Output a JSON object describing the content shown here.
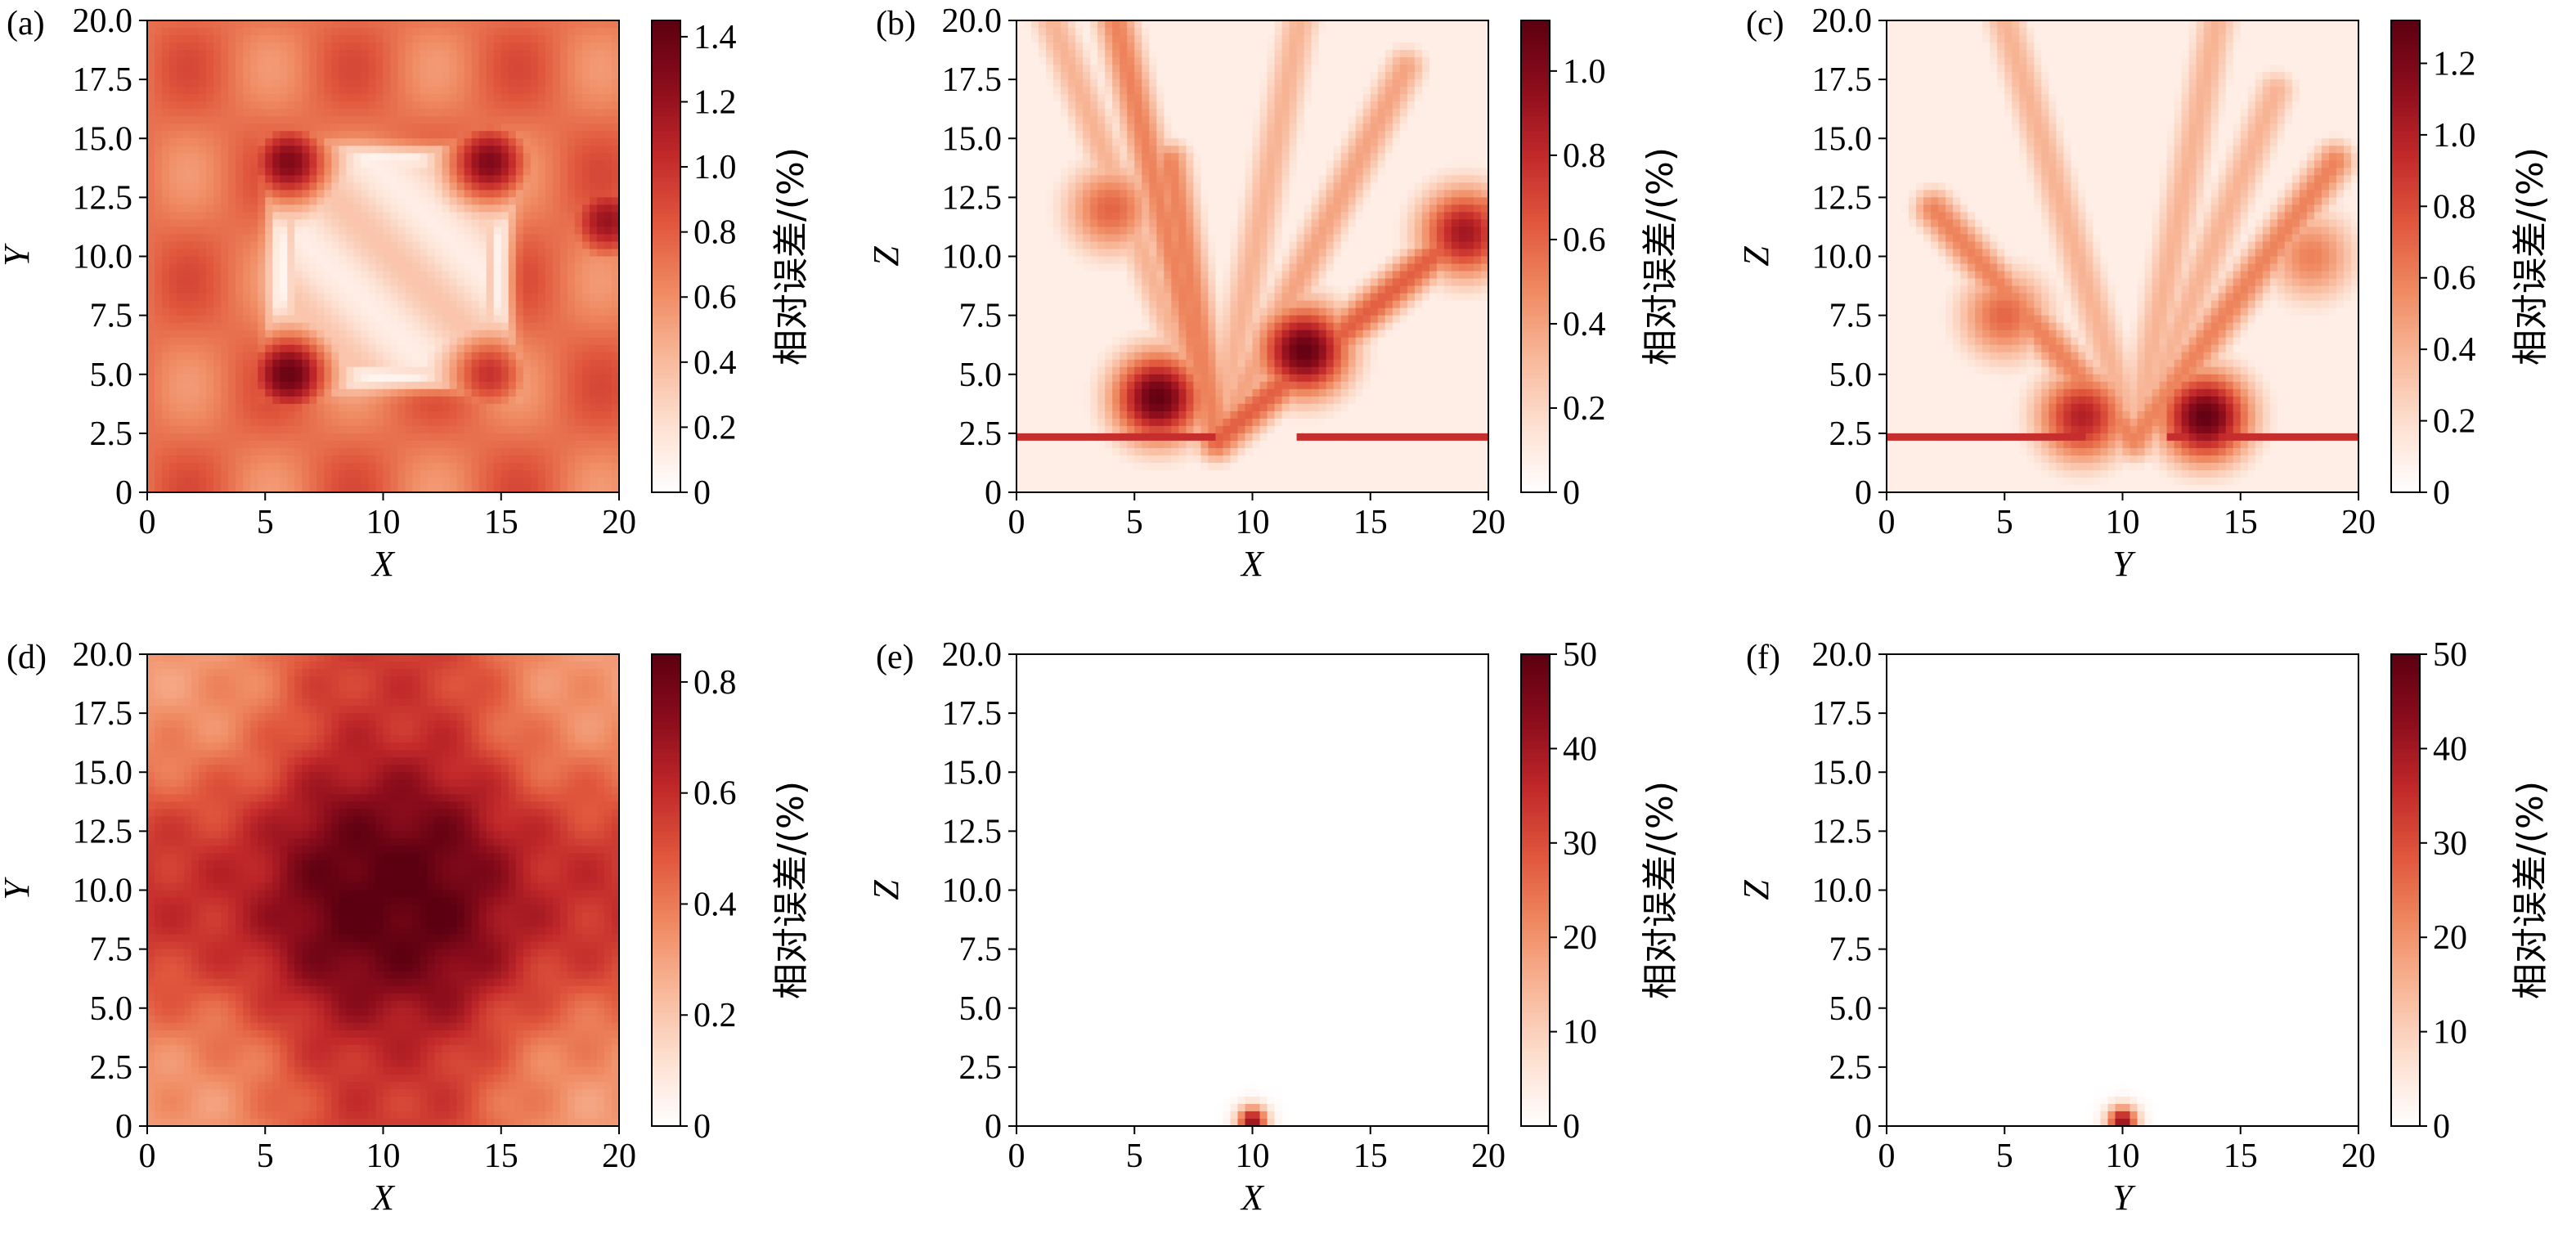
{
  "colors": {
    "scale_stops": [
      "#ffffff",
      "#fde0d1",
      "#f8b89a",
      "#ef8a62",
      "#e0573d",
      "#c2292a",
      "#8d0d1c",
      "#5c0011"
    ],
    "frame": "#000000"
  },
  "chart_data": [
    {
      "panel": "(a)",
      "type": "heatmap",
      "title": "",
      "xlabel": "X",
      "ylabel": "Y",
      "xlim": [
        0,
        20
      ],
      "ylim": [
        20,
        0
      ],
      "xticks": [
        "0",
        "5",
        "10",
        "15",
        "20"
      ],
      "yticks": [
        "0",
        "2.5",
        "5.0",
        "7.5",
        "10.0",
        "12.5",
        "15.0",
        "17.5",
        "20.0"
      ],
      "colorbar": {
        "label": "相对误差/(%)",
        "range": [
          0,
          1.45
        ],
        "ticks": [
          "0",
          "0.2",
          "0.4",
          "0.6",
          "0.8",
          "1.0",
          "1.2",
          "1.4"
        ]
      },
      "pattern": "square_ring",
      "hotspots": [
        {
          "x": 6,
          "y": 5,
          "value": 1.4
        },
        {
          "x": 14.5,
          "y": 5,
          "value": 1.0
        },
        {
          "x": 6,
          "y": 14,
          "value": 1.3
        },
        {
          "x": 14.5,
          "y": 14,
          "value": 1.3
        },
        {
          "x": 19.5,
          "y": 11.5,
          "value": 1.2
        }
      ]
    },
    {
      "panel": "(b)",
      "type": "heatmap",
      "title": "",
      "xlabel": "X",
      "ylabel": "Z",
      "xlim": [
        0,
        20
      ],
      "ylim": [
        20,
        0
      ],
      "xticks": [
        "0",
        "5",
        "10",
        "15",
        "20"
      ],
      "yticks": [
        "0",
        "2.5",
        "5.0",
        "7.5",
        "10.0",
        "12.5",
        "15.0",
        "17.5",
        "20.0"
      ],
      "colorbar": {
        "label": "相对误差/(%)",
        "range": [
          0,
          1.12
        ],
        "ticks": [
          "0",
          "0.2",
          "0.4",
          "0.6",
          "0.8",
          "1.0"
        ]
      },
      "pattern": "fan_rays",
      "hotspots": [
        {
          "x": 6,
          "y": 4,
          "value": 1.1
        },
        {
          "x": 12.2,
          "y": 6,
          "value": 1.1
        },
        {
          "x": 19,
          "y": 11,
          "value": 0.9
        },
        {
          "x": 4,
          "y": 12,
          "value": 0.6
        }
      ]
    },
    {
      "panel": "(c)",
      "type": "heatmap",
      "title": "",
      "xlabel": "Y",
      "ylabel": "Z",
      "xlim": [
        0,
        20
      ],
      "ylim": [
        20,
        0
      ],
      "xticks": [
        "0",
        "5",
        "10",
        "15",
        "20"
      ],
      "yticks": [
        "0",
        "2.5",
        "5.0",
        "7.5",
        "10.0",
        "12.5",
        "15.0",
        "17.5",
        "20.0"
      ],
      "colorbar": {
        "label": "相对误差/(%)",
        "range": [
          0,
          1.32
        ],
        "ticks": [
          "0",
          "0.2",
          "0.4",
          "0.6",
          "0.8",
          "1.0",
          "1.2"
        ]
      },
      "pattern": "fan_rays",
      "hotspots": [
        {
          "x": 13.5,
          "y": 3.2,
          "value": 1.3
        },
        {
          "x": 8.3,
          "y": 3.2,
          "value": 1.0
        },
        {
          "x": 5,
          "y": 7.5,
          "value": 0.7
        },
        {
          "x": 18,
          "y": 10,
          "value": 0.6
        }
      ]
    },
    {
      "panel": "(d)",
      "type": "heatmap",
      "title": "",
      "xlabel": "X",
      "ylabel": "Y",
      "xlim": [
        0,
        20
      ],
      "ylim": [
        20,
        0
      ],
      "xticks": [
        "0",
        "5",
        "10",
        "15",
        "20"
      ],
      "yticks": [
        "0",
        "2.5",
        "5.0",
        "7.5",
        "10.0",
        "12.5",
        "15.0",
        "17.5",
        "20.0"
      ],
      "colorbar": {
        "label": "相对误差/(%)",
        "range": [
          0,
          0.85
        ],
        "ticks": [
          "0",
          "0.2",
          "0.4",
          "0.6",
          "0.8"
        ]
      },
      "pattern": "grid_blocks",
      "hotspots": [
        {
          "x": 8,
          "y": 12,
          "value": 0.85
        },
        {
          "x": 12.5,
          "y": 12,
          "value": 0.8
        },
        {
          "x": 8,
          "y": 7.5,
          "value": 0.8
        },
        {
          "x": 12.5,
          "y": 7.5,
          "value": 0.75
        }
      ]
    },
    {
      "panel": "(e)",
      "type": "heatmap",
      "title": "",
      "xlabel": "X",
      "ylabel": "Z",
      "xlim": [
        0,
        20
      ],
      "ylim": [
        20,
        0
      ],
      "xticks": [
        "0",
        "5",
        "10",
        "15",
        "20"
      ],
      "yticks": [
        "0",
        "2.5",
        "5.0",
        "7.5",
        "10.0",
        "12.5",
        "15.0",
        "17.5",
        "20.0"
      ],
      "colorbar": {
        "label": "相对误差/(%)",
        "range": [
          0,
          50
        ],
        "ticks": [
          "0",
          "10",
          "20",
          "30",
          "40",
          "50"
        ]
      },
      "pattern": "point_source",
      "hotspots": [
        {
          "x": 10,
          "y": 0,
          "value": 50
        }
      ]
    },
    {
      "panel": "(f)",
      "type": "heatmap",
      "title": "",
      "xlabel": "Y",
      "ylabel": "Z",
      "xlim": [
        0,
        20
      ],
      "ylim": [
        20,
        0
      ],
      "xticks": [
        "0",
        "5",
        "10",
        "15",
        "20"
      ],
      "yticks": [
        "0",
        "2.5",
        "5.0",
        "7.5",
        "10.0",
        "12.5",
        "15.0",
        "17.5",
        "20.0"
      ],
      "colorbar": {
        "label": "相对误差/(%)",
        "range": [
          0,
          50
        ],
        "ticks": [
          "0",
          "10",
          "20",
          "30",
          "40",
          "50"
        ]
      },
      "pattern": "point_source",
      "hotspots": [
        {
          "x": 10,
          "y": 0,
          "value": 50
        }
      ]
    }
  ]
}
